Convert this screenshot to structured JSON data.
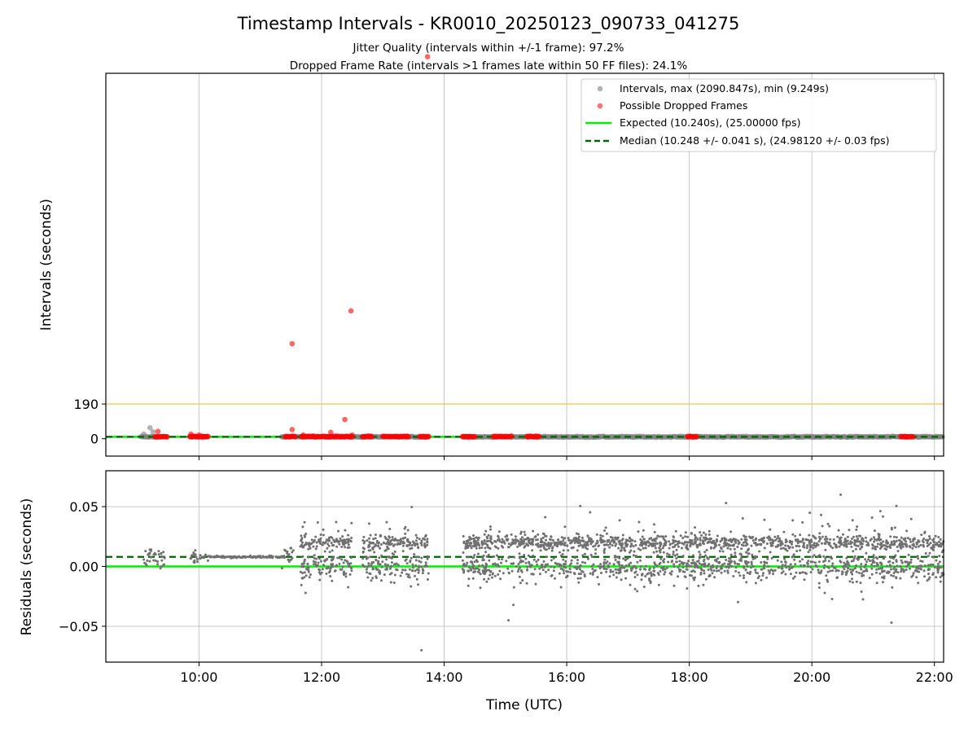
{
  "title": "Timestamp Intervals - KR0010_20250123_090733_041275",
  "subtitle1": "Jitter Quality (intervals within +/-1 frame): 97.2%",
  "subtitle2": "Dropped Frame Rate (intervals >1 frames late within 50 FF files): 24.1%",
  "colors": {
    "intervals": "#808080",
    "dropped": "#ff0000",
    "expected": "#00ee00",
    "median": "#006400",
    "threshold": "#f0c040",
    "residuals": "#707070",
    "grid": "#b0b0b0"
  },
  "legend": {
    "placement": "top-right",
    "intervals": "Intervals, max (2090.847s), min (9.249s)",
    "dropped": "Possible Dropped Frames",
    "expected": "Expected (10.240s), (25.00000 fps)",
    "median": "Median (10.248 +/- 0.041 s), (24.98120 +/- 0.03 fps)"
  },
  "chart_data": [
    {
      "type": "scatter",
      "panel": "top",
      "ylabel": "Intervals (seconds)",
      "xlim": [
        8.48,
        22.15
      ],
      "ylim": [
        -95,
        2000
      ],
      "x_ticks": [
        10,
        12,
        14,
        16,
        18,
        20,
        22
      ],
      "y_ticks": [
        0,
        190
      ],
      "y_tick_labels": [
        "0",
        "190"
      ],
      "grid": "vertical",
      "threshold_line": 190,
      "expected_line": 10.24,
      "median_line": 10.248,
      "intervals_series": {
        "name": "Intervals, max (2090.847s), min (9.249s)",
        "x_ranges": [
          [
            9.05,
            9.5
          ],
          [
            9.85,
            10.15
          ],
          [
            11.35,
            13.75
          ],
          [
            14.3,
            22.15
          ]
        ],
        "typical_y": 10.24,
        "notable_points": [
          [
            9.2,
            60
          ],
          [
            9.25,
            38
          ],
          [
            9.1,
            25
          ]
        ]
      },
      "dropped_series": {
        "name": "Possible Dropped Frames",
        "points": [
          [
            13.73,
            2090.8
          ],
          [
            12.48,
            700
          ],
          [
            11.52,
            520
          ],
          [
            12.38,
            105
          ],
          [
            11.52,
            50
          ],
          [
            12.15,
            35
          ],
          [
            9.33,
            40
          ],
          [
            9.87,
            25
          ],
          [
            10.0,
            20
          ],
          [
            11.7,
            20
          ],
          [
            12.5,
            20
          ]
        ],
        "clusters": [
          [
            9.28,
            9.48
          ],
          [
            9.85,
            10.15
          ],
          [
            11.4,
            11.57
          ],
          [
            11.67,
            12.5
          ],
          [
            12.67,
            12.82
          ],
          [
            13.0,
            13.42
          ],
          [
            13.6,
            13.75
          ],
          [
            14.3,
            14.5
          ],
          [
            14.8,
            15.1
          ],
          [
            15.35,
            15.55
          ],
          [
            17.97,
            18.12
          ],
          [
            21.45,
            21.65
          ]
        ]
      }
    },
    {
      "type": "scatter",
      "panel": "bottom",
      "xlabel": "Time (UTC)",
      "ylabel": "Residuals (seconds)",
      "xlim": [
        8.48,
        22.15
      ],
      "ylim": [
        -0.08,
        0.08
      ],
      "x_ticks": [
        10,
        12,
        14,
        16,
        18,
        20,
        22
      ],
      "x_tick_labels": [
        "10:00",
        "12:00",
        "14:00",
        "16:00",
        "18:00",
        "20:00",
        "22:00"
      ],
      "y_ticks": [
        0.05,
        0.0,
        -0.05
      ],
      "y_tick_labels": [
        "0.05",
        "0.00",
        "−0.05"
      ],
      "grid": "both",
      "expected_line": 0.0,
      "median_line": 0.008,
      "residuals_series": {
        "segments": [
          {
            "x": [
              9.05,
              9.45
            ],
            "center": 0.008,
            "spread": 0.012
          },
          {
            "x": [
              9.85,
              10.15
            ],
            "center": 0.008,
            "spread": 0.006
          },
          {
            "x": [
              10.15,
              11.4
            ],
            "center": 0.008,
            "spread": 0.001
          },
          {
            "x": [
              11.35,
              11.55
            ],
            "center": 0.008,
            "spread": 0.012
          },
          {
            "x": [
              11.65,
              12.5
            ],
            "center": 0.01,
            "spread": 0.045
          },
          {
            "x": [
              12.67,
              13.75
            ],
            "center": 0.01,
            "spread": 0.045
          },
          {
            "x": [
              14.3,
              22.15
            ],
            "center": 0.01,
            "spread": 0.045
          }
        ],
        "max": 0.06,
        "min": -0.072
      }
    }
  ]
}
